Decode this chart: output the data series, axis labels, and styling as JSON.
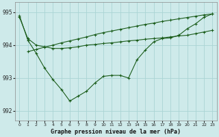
{
  "title": "Graphe pression niveau de la mer (hPa)",
  "background_color": "#ceeaea",
  "grid_color": "#aad4d4",
  "line_color": "#1a5c1a",
  "xlim": [
    -0.5,
    23.5
  ],
  "ylim": [
    991.7,
    995.3
  ],
  "yticks": [
    992,
    993,
    994,
    995
  ],
  "xtick_labels": [
    "0",
    "1",
    "2",
    "3",
    "4",
    "5",
    "6",
    "7",
    "8",
    "9",
    "10",
    "11",
    "12",
    "13",
    "14",
    "15",
    "16",
    "17",
    "18",
    "19",
    "20",
    "21",
    "22",
    "23"
  ],
  "series": [
    {
      "x": [
        0,
        1,
        2,
        3,
        4,
        5,
        6,
        7,
        8,
        9,
        10,
        11,
        12,
        13,
        14,
        15,
        16,
        17,
        18,
        19,
        20,
        21,
        22,
        23
      ],
      "y": [
        994.85,
        994.2,
        994.0,
        993.95,
        993.9,
        993.9,
        993.92,
        993.95,
        994.0,
        994.02,
        994.05,
        994.07,
        994.1,
        994.13,
        994.15,
        994.18,
        994.2,
        994.22,
        994.25,
        994.28,
        994.3,
        994.35,
        994.4,
        994.45
      ]
    },
    {
      "x": [
        1,
        2,
        3,
        4,
        5,
        6,
        7,
        8,
        9,
        10,
        11,
        12,
        13,
        14,
        15,
        16,
        17,
        18,
        19,
        20,
        21,
        22,
        23
      ],
      "y": [
        993.8,
        993.87,
        993.94,
        994.0,
        994.07,
        994.13,
        994.19,
        994.25,
        994.32,
        994.38,
        994.43,
        994.48,
        994.53,
        994.58,
        994.63,
        994.67,
        994.72,
        994.76,
        994.8,
        994.84,
        994.88,
        994.92,
        994.95
      ]
    },
    {
      "x": [
        0,
        1,
        2,
        3,
        4,
        5,
        6,
        7,
        8,
        9,
        10,
        11,
        12,
        13,
        14,
        15,
        16,
        17,
        18,
        19,
        20,
        21,
        22,
        23
      ],
      "y": [
        994.9,
        994.15,
        993.75,
        993.3,
        992.95,
        992.65,
        992.3,
        992.45,
        992.6,
        992.85,
        993.05,
        993.08,
        993.08,
        993.0,
        993.55,
        993.85,
        994.1,
        994.2,
        994.22,
        994.3,
        994.5,
        994.65,
        994.85,
        994.95
      ]
    }
  ]
}
